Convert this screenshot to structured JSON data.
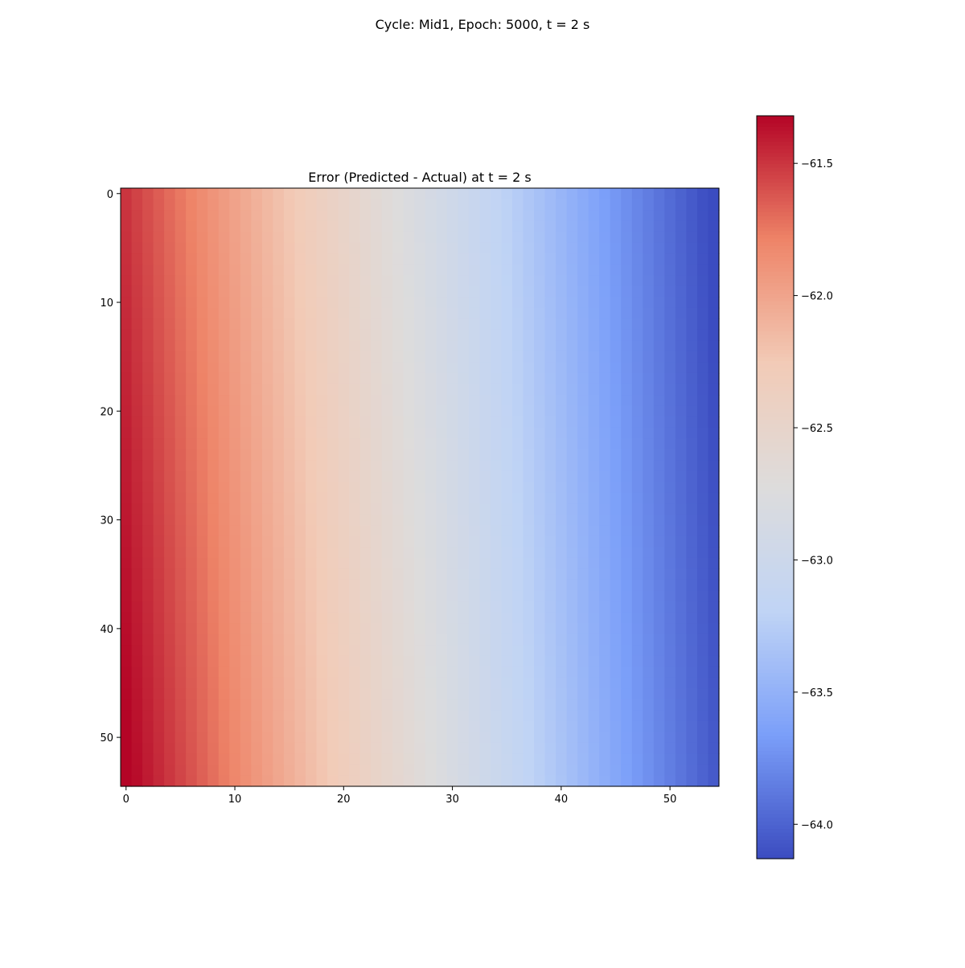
{
  "figure": {
    "suptitle": "Cycle: Mid1, Epoch: 5000, t = 2 s"
  },
  "chart_data": {
    "type": "heatmap",
    "title": "Error (Predicted - Actual) at t = 2 s",
    "xlabel": "",
    "ylabel": "",
    "rows": 55,
    "cols": 55,
    "x_ticks": [
      "0",
      "10",
      "20",
      "30",
      "40",
      "50"
    ],
    "x_tick_values": [
      0,
      10,
      20,
      30,
      40,
      50
    ],
    "y_ticks": [
      "0",
      "10",
      "20",
      "30",
      "40",
      "50"
    ],
    "y_tick_values": [
      0,
      10,
      20,
      30,
      40,
      50
    ],
    "value_model": {
      "description_of_field": "values vary mostly along columns, slightly along rows",
      "col0_row0": -61.5,
      "col0_row54": -61.3,
      "col54_row0": -64.15,
      "col54_row54": -64.05
    },
    "colormap": "coolwarm",
    "colorbar": {
      "vmin": -64.13,
      "vmax": -61.32,
      "ticks": [
        "−61.5",
        "−62.0",
        "−62.5",
        "−63.0",
        "−63.5",
        "−64.0"
      ],
      "tick_values": [
        -61.5,
        -62.0,
        -62.5,
        -63.0,
        -63.5,
        -64.0
      ]
    },
    "colors": {
      "cmap_stops": [
        "#3b4cc0",
        "#7b9ff9",
        "#c0d4f5",
        "#dddcdc",
        "#f2cbb7",
        "#ee8468",
        "#b40426"
      ]
    },
    "grid": false
  }
}
